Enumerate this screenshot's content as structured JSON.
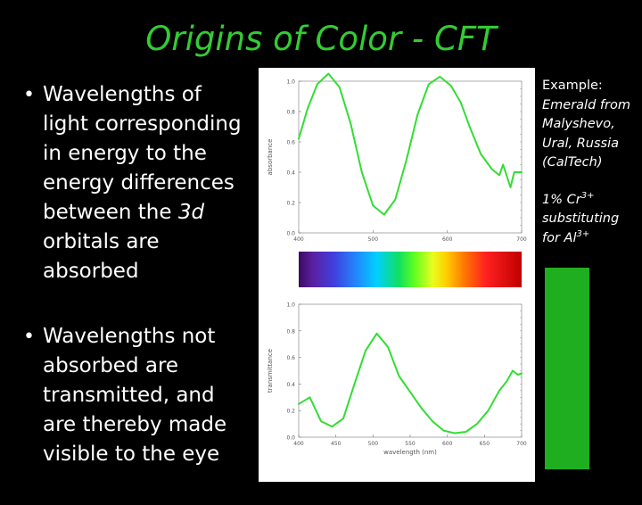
{
  "slide": {
    "title": "Origins of Color - CFT",
    "bullet1_part1": "Wavelengths of light corresponding in energy to the energy differences between the ",
    "bullet1_italic": "3d",
    "bullet1_part2": " orbitals are absorbed",
    "bullet2": "Wavelengths not absorbed are transmitted, and are thereby made visible to the eye",
    "example_label": "Example:",
    "example_body": "Emerald from Malyshevo, Ural, Russia (CalTech)",
    "substitution_prefix": "1% Cr",
    "substitution_sup1": "3+",
    "substitution_middle": " substituting for Al",
    "substitution_sup2": "3+",
    "swatch_color": "#1fae1f"
  },
  "chart_data": [
    {
      "type": "line",
      "ylabel": "absorbance",
      "xlabel": "",
      "xlim": [
        400,
        700
      ],
      "ylim": [
        0.0,
        1.0
      ],
      "x_ticks": [
        "400",
        "500",
        "600",
        "700"
      ],
      "y_ticks": [
        "0.0",
        "0.2",
        "0.4",
        "0.6",
        "0.8",
        "1.0"
      ],
      "line_color": "#33dd33",
      "series": [
        {
          "x": [
            400,
            412,
            425,
            440,
            455,
            470,
            485,
            500,
            515,
            530,
            545,
            560,
            575,
            590,
            605,
            618,
            630,
            645,
            660,
            670,
            675,
            685,
            690,
            700
          ],
          "y": [
            0.62,
            0.82,
            0.98,
            1.05,
            0.96,
            0.72,
            0.4,
            0.18,
            0.12,
            0.22,
            0.48,
            0.78,
            0.98,
            1.03,
            0.97,
            0.86,
            0.7,
            0.52,
            0.42,
            0.38,
            0.45,
            0.3,
            0.4,
            0.4
          ]
        }
      ]
    },
    {
      "type": "line",
      "ylabel": "transmittance",
      "xlabel": "wavelength (nm)",
      "xlim": [
        400,
        700
      ],
      "ylim": [
        0.0,
        1.0
      ],
      "x_ticks": [
        "400",
        "450",
        "500",
        "550",
        "600",
        "650",
        "700"
      ],
      "y_ticks": [
        "0.0",
        "0.2",
        "0.4",
        "0.6",
        "0.8",
        "1.0"
      ],
      "line_color": "#33dd33",
      "series": [
        {
          "x": [
            400,
            415,
            430,
            445,
            460,
            475,
            490,
            505,
            520,
            535,
            550,
            565,
            580,
            595,
            610,
            625,
            640,
            655,
            670,
            680,
            688,
            695,
            700
          ],
          "y": [
            0.25,
            0.3,
            0.12,
            0.08,
            0.14,
            0.4,
            0.65,
            0.78,
            0.68,
            0.46,
            0.34,
            0.22,
            0.12,
            0.05,
            0.03,
            0.04,
            0.1,
            0.2,
            0.35,
            0.42,
            0.5,
            0.47,
            0.48
          ]
        }
      ]
    }
  ]
}
